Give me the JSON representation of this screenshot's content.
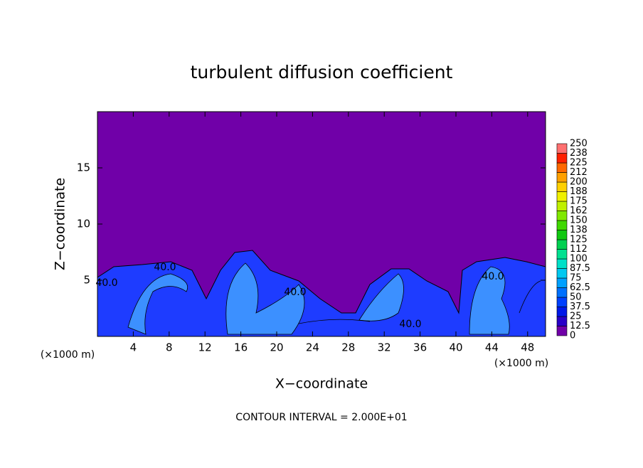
{
  "chart_data": {
    "type": "contour",
    "title": "turbulent diffusion coefficient",
    "xlabel": "X−coordinate",
    "ylabel": "Z−coordinate",
    "xunit": "(×1000 m)",
    "yunit": "(×1000 m)",
    "xlim": [
      0,
      50
    ],
    "ylim": [
      0,
      20
    ],
    "xticks": [
      4,
      8,
      12,
      16,
      20,
      24,
      28,
      32,
      36,
      40,
      44,
      48
    ],
    "yticks": [
      5,
      10,
      15
    ],
    "contour_labels": [
      "40.0",
      "40.0",
      "40.0",
      "40.0",
      "40.0"
    ],
    "footnote": "CONTOUR INTERVAL = 2.000E+01",
    "colorbar": {
      "levels": [
        0,
        12.5,
        25,
        37.5,
        50,
        62.5,
        75,
        87.5,
        100,
        {
          "value": 112.5,
          "label": "112"
        },
        125,
        {
          "value": 137.5,
          "label": "138"
        },
        150,
        {
          "value": 162.5,
          "label": "162"
        },
        175,
        {
          "value": 187.5,
          "label": "188"
        },
        200,
        {
          "value": 212.5,
          "label": "212"
        },
        225,
        {
          "value": 237.5,
          "label": "238"
        },
        250
      ],
      "colors": [
        "#7000a8",
        "#2800c8",
        "#0018e8",
        "#0040ff",
        "#0070ff",
        "#00a0ff",
        "#00c8f0",
        "#00e0c8",
        "#00e090",
        "#00d050",
        "#10c810",
        "#40d800",
        "#80e800",
        "#c0f000",
        "#f0f000",
        "#ffd000",
        "#ffa000",
        "#ff6800",
        "#ff2000",
        "#ff7070"
      ]
    }
  }
}
